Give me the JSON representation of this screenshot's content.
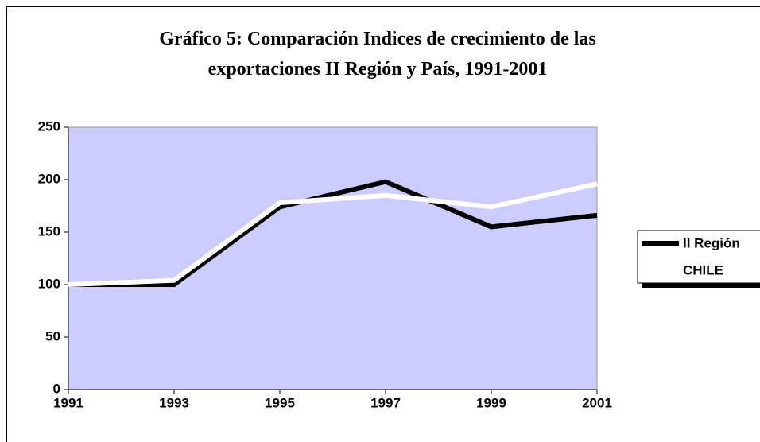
{
  "chart_data": {
    "type": "line",
    "title": "Gráfico 5: Comparación Indices de crecimiento de las exportaciones II Región y País, 1991-2001",
    "categories": [
      "1991",
      "1993",
      "1995",
      "1997",
      "1999",
      "2001"
    ],
    "series": [
      {
        "name": "II Región",
        "color": "#000000",
        "values": [
          100,
          100,
          174,
          198,
          155,
          166
        ]
      },
      {
        "name": "CHILE",
        "color": "#ffffff",
        "values": [
          100,
          104,
          178,
          185,
          174,
          196
        ]
      }
    ],
    "ylim": [
      0,
      250
    ],
    "yticks": [
      0,
      50,
      100,
      150,
      200,
      250
    ],
    "plot_background": "#ccccff",
    "legend": "right"
  }
}
